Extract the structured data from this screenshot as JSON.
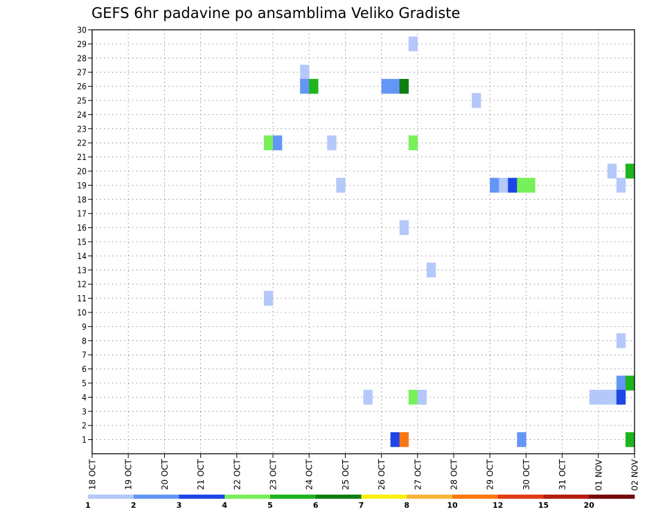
{
  "chart_data": {
    "type": "heatmap",
    "title": "GEFS 6hr padavine po ansamblima Veliko Gradiste",
    "ylim": [
      0,
      30
    ],
    "y_ticks": [
      "1",
      "2",
      "3",
      "4",
      "5",
      "6",
      "7",
      "8",
      "9",
      "10",
      "11",
      "12",
      "13",
      "14",
      "15",
      "16",
      "17",
      "18",
      "19",
      "20",
      "21",
      "22",
      "23",
      "24",
      "25",
      "26",
      "27",
      "28",
      "29",
      "30"
    ],
    "x_ticks": [
      "18 OCT",
      "19 OCT",
      "20 OCT",
      "21 OCT",
      "22 OCT",
      "23 OCT",
      "24 OCT",
      "25 OCT",
      "26 OCT",
      "27 OCT",
      "28 OCT",
      "29 OCT",
      "30 OCT",
      "31 OCT",
      "01 NOV",
      "02 NOV"
    ],
    "x_unit": "6-hour steps from 18 OCT 00Z",
    "grid": true,
    "legend": {
      "position": "bottom",
      "labels": [
        "1",
        "2",
        "3",
        "4",
        "5",
        "6",
        "7",
        "8",
        "10",
        "12",
        "15",
        "20"
      ],
      "colors": [
        "#b4c8fa",
        "#6496f5",
        "#1e46e6",
        "#78f05a",
        "#1eb41e",
        "#0f7d0f",
        "#faf00a",
        "#fab43c",
        "#fa7814",
        "#e13c14",
        "#b41e0f",
        "#780a0a"
      ]
    },
    "cells": [
      {
        "member": 29,
        "step": 36,
        "bin": 0
      },
      {
        "member": 27,
        "step": 24,
        "bin": 0
      },
      {
        "member": 26,
        "step": 24,
        "bin": 1
      },
      {
        "member": 26,
        "step": 25,
        "bin": 4
      },
      {
        "member": 26,
        "step": 33,
        "bin": 1
      },
      {
        "member": 26,
        "step": 34,
        "bin": 1
      },
      {
        "member": 26,
        "step": 35,
        "bin": 5
      },
      {
        "member": 25,
        "step": 43,
        "bin": 0
      },
      {
        "member": 22,
        "step": 20,
        "bin": 3
      },
      {
        "member": 22,
        "step": 21,
        "bin": 1
      },
      {
        "member": 22,
        "step": 27,
        "bin": 0
      },
      {
        "member": 22,
        "step": 36,
        "bin": 3
      },
      {
        "member": 20,
        "step": 58,
        "bin": 0
      },
      {
        "member": 20,
        "step": 60,
        "bin": 4
      },
      {
        "member": 19,
        "step": 28,
        "bin": 0
      },
      {
        "member": 19,
        "step": 45,
        "bin": 1
      },
      {
        "member": 19,
        "step": 46,
        "bin": 0
      },
      {
        "member": 19,
        "step": 47,
        "bin": 2
      },
      {
        "member": 19,
        "step": 48,
        "bin": 3
      },
      {
        "member": 19,
        "step": 49,
        "bin": 3
      },
      {
        "member": 19,
        "step": 59,
        "bin": 0
      },
      {
        "member": 16,
        "step": 35,
        "bin": 0
      },
      {
        "member": 13,
        "step": 38,
        "bin": 0
      },
      {
        "member": 11,
        "step": 20,
        "bin": 0
      },
      {
        "member": 8,
        "step": 59,
        "bin": 0
      },
      {
        "member": 5,
        "step": 59,
        "bin": 1
      },
      {
        "member": 5,
        "step": 60,
        "bin": 4
      },
      {
        "member": 4,
        "step": 31,
        "bin": 0
      },
      {
        "member": 4,
        "step": 36,
        "bin": 3
      },
      {
        "member": 4,
        "step": 37,
        "bin": 0
      },
      {
        "member": 4,
        "step": 56,
        "bin": 0
      },
      {
        "member": 4,
        "step": 57,
        "bin": 0
      },
      {
        "member": 4,
        "step": 58,
        "bin": 0
      },
      {
        "member": 4,
        "step": 59,
        "bin": 2
      },
      {
        "member": 1,
        "step": 34,
        "bin": 2
      },
      {
        "member": 1,
        "step": 35,
        "bin": 8
      },
      {
        "member": 1,
        "step": 48,
        "bin": 1
      },
      {
        "member": 1,
        "step": 60,
        "bin": 4
      }
    ]
  }
}
